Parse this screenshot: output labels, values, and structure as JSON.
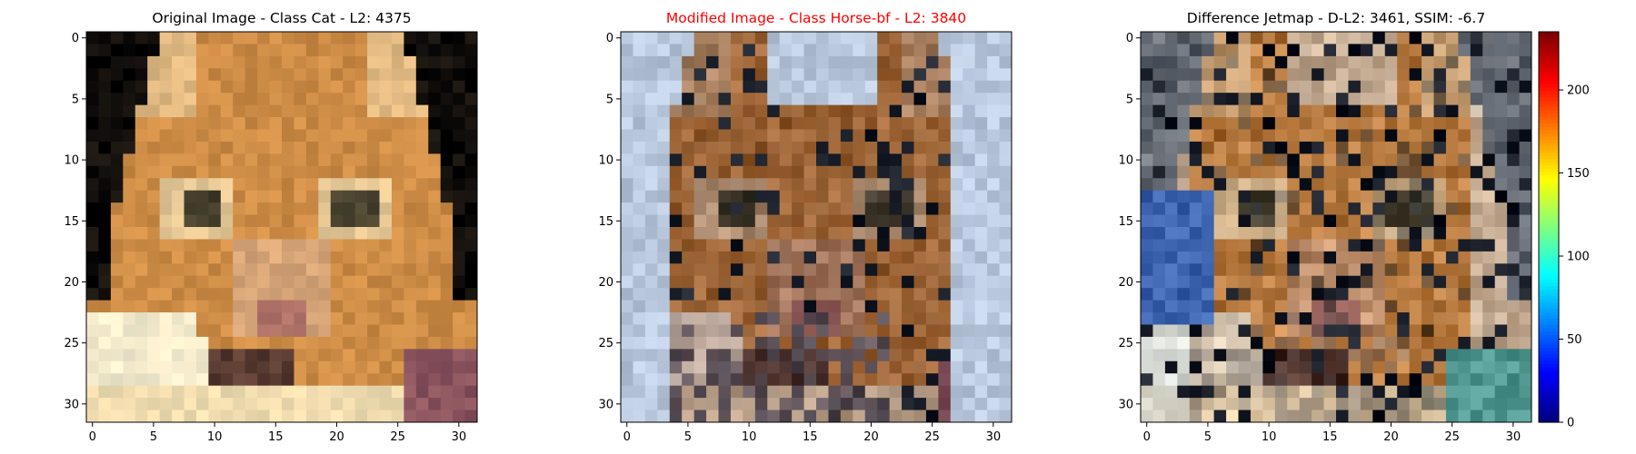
{
  "chart_data": [
    {
      "type": "heatmap",
      "title": "Original Image - Class Cat - L2: 4375",
      "title_color": "#000000",
      "image_size": [
        32,
        32
      ],
      "xticks": [
        "0",
        "5",
        "10",
        "15",
        "20",
        "25",
        "30"
      ],
      "yticks": [
        "0",
        "5",
        "10",
        "15",
        "20",
        "25",
        "30"
      ],
      "content": "pixelated orange tabby cat face, black background"
    },
    {
      "type": "heatmap",
      "title": "Modified Image - Class Horse-bf - L2: 3840",
      "title_color": "#ff0000",
      "image_size": [
        32,
        32
      ],
      "xticks": [
        "0",
        "5",
        "10",
        "15",
        "20",
        "25",
        "30"
      ],
      "yticks": [
        "0",
        "5",
        "10",
        "15",
        "20",
        "25",
        "30"
      ],
      "content": "perturbed cat image with light blue background"
    },
    {
      "type": "heatmap",
      "title": "Difference Jetmap - D-L2: 3461, SSIM: -6.7",
      "title_color": "#000000",
      "image_size": [
        32,
        32
      ],
      "xticks": [
        "0",
        "5",
        "10",
        "15",
        "20",
        "25",
        "30"
      ],
      "yticks": [
        "0",
        "5",
        "10",
        "15",
        "20",
        "25",
        "30"
      ],
      "colorbar": {
        "colormap": "jet",
        "range": [
          0,
          235
        ],
        "ticks": [
          "0",
          "50",
          "100",
          "150",
          "200"
        ]
      }
    }
  ]
}
